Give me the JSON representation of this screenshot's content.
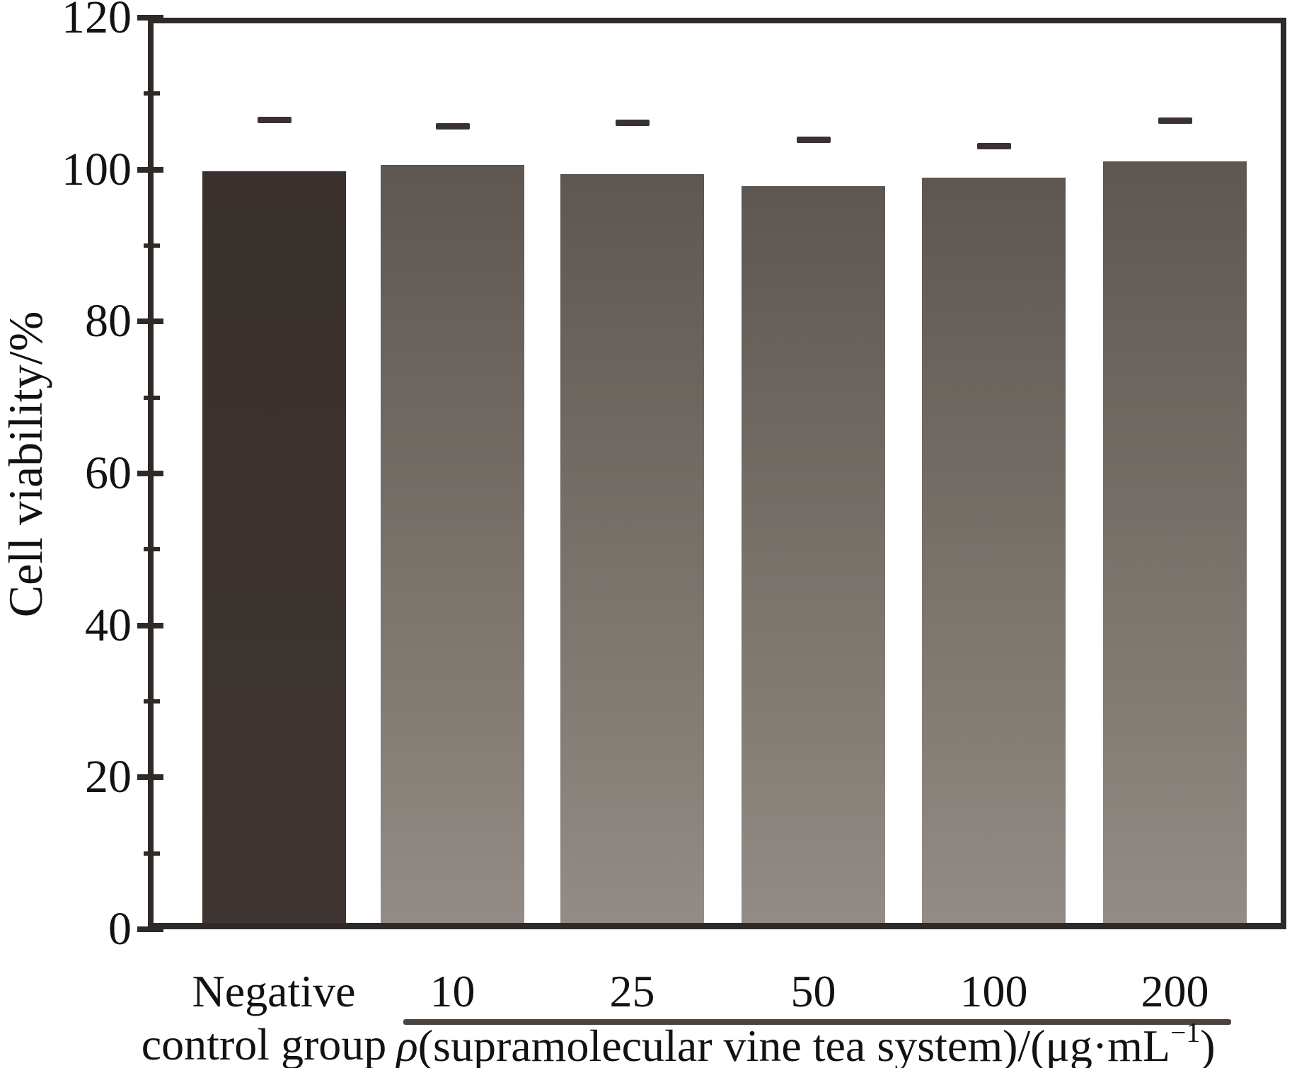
{
  "figure": {
    "ylabel": "Cell viability/%",
    "x_control_label_line1": "Negative",
    "x_control_label_line2": "control group",
    "x_axis_label_rho": "ρ",
    "x_axis_label_main": "(supramolecular vine tea system)/(μg·mL",
    "x_axis_label_sup": "−1",
    "x_axis_label_close": ")"
  },
  "chart_data": {
    "type": "bar",
    "title": "",
    "xlabel": "ρ(supramolecular vine tea system)/(μg·mL−1)",
    "ylabel": "Cell viability/%",
    "categories": [
      "Negative control group",
      "10",
      "25",
      "50",
      "100",
      "200"
    ],
    "values": [
      99.8,
      100.6,
      99.4,
      97.8,
      98.9,
      101.1
    ],
    "errors": [
      6.7,
      5.1,
      6.8,
      6.1,
      4.2,
      5.3
    ],
    "error_direction": "upper-only",
    "ylim": [
      0,
      120
    ],
    "yticks": [
      0,
      20,
      40,
      60,
      80,
      100,
      120
    ],
    "y_minor_tick_step": 10,
    "grid": false,
    "legend": "none",
    "bar_colors": {
      "control_bar": "#3a312e",
      "sample_bar_top": "#5e5650",
      "sample_bar_bottom": "#948c87"
    },
    "frame_color": "#2f2927",
    "error_bar_color": "#393230"
  }
}
